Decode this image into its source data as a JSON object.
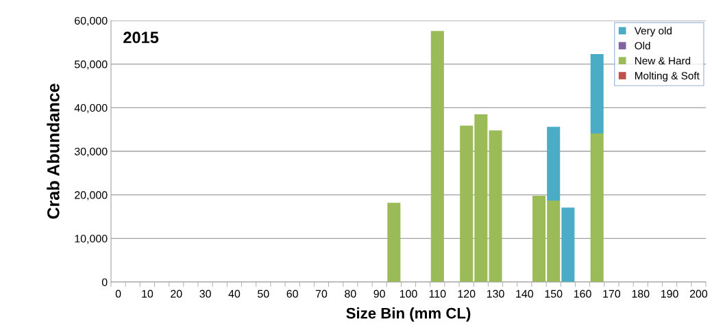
{
  "chart_data": {
    "type": "bar",
    "stacked": true,
    "title": "2015",
    "xlabel": "Size Bin (mm CL)",
    "ylabel": "Crab Abundance",
    "categories": [
      "0",
      null,
      "10",
      null,
      "20",
      null,
      "30",
      null,
      "40",
      null,
      "50",
      null,
      "60",
      null,
      "70",
      null,
      "80",
      null,
      "90",
      null,
      "100",
      null,
      "110",
      null,
      "120",
      null,
      "130",
      null,
      "140",
      null,
      "150",
      null,
      "160",
      null,
      "170",
      null,
      "180",
      null,
      "190",
      null,
      "200"
    ],
    "series": [
      {
        "name": "Molting & Soft",
        "color": "#c0504d",
        "values": [
          null,
          null,
          null,
          null,
          null,
          null,
          null,
          null,
          null,
          null,
          null,
          null,
          null,
          null,
          null,
          null,
          null,
          null,
          null,
          null,
          null,
          null,
          null,
          null,
          null,
          null,
          null,
          null,
          null,
          null,
          null,
          null,
          null,
          null,
          null,
          null,
          null,
          null,
          null,
          null,
          null
        ]
      },
      {
        "name": "New & Hard",
        "color": "#9bbb59",
        "values": [
          null,
          null,
          null,
          null,
          null,
          null,
          null,
          null,
          null,
          null,
          null,
          null,
          null,
          null,
          null,
          null,
          null,
          null,
          null,
          18200,
          null,
          null,
          57600,
          null,
          35900,
          38500,
          34800,
          null,
          null,
          19800,
          18700,
          null,
          null,
          34100,
          null,
          null,
          null,
          null,
          null,
          null,
          null
        ]
      },
      {
        "name": "Old",
        "color": "#8064a2",
        "values": [
          null,
          null,
          null,
          null,
          null,
          null,
          null,
          null,
          null,
          null,
          null,
          null,
          null,
          null,
          null,
          null,
          null,
          null,
          null,
          null,
          null,
          null,
          null,
          null,
          null,
          null,
          null,
          null,
          null,
          null,
          null,
          null,
          null,
          null,
          null,
          null,
          null,
          null,
          null,
          null,
          null
        ]
      },
      {
        "name": "Very old",
        "color": "#4bacc6",
        "values": [
          null,
          null,
          null,
          null,
          null,
          null,
          null,
          null,
          null,
          null,
          null,
          null,
          null,
          null,
          null,
          null,
          null,
          null,
          null,
          null,
          null,
          null,
          null,
          null,
          null,
          null,
          null,
          null,
          null,
          null,
          16900,
          17100,
          null,
          18200,
          null,
          null,
          null,
          null,
          null,
          null,
          null
        ]
      }
    ],
    "ylim": [
      0,
      60000
    ],
    "yticks": [
      {
        "value": 0,
        "label": "0"
      },
      {
        "value": 10000,
        "label": "10,000"
      },
      {
        "value": 20000,
        "label": "20,000"
      },
      {
        "value": 30000,
        "label": "30,000"
      },
      {
        "value": 40000,
        "label": "40,000"
      },
      {
        "value": 50000,
        "label": "50,000"
      },
      {
        "value": 60000,
        "label": "60,000"
      }
    ],
    "grid": "y",
    "legend": "top right"
  }
}
